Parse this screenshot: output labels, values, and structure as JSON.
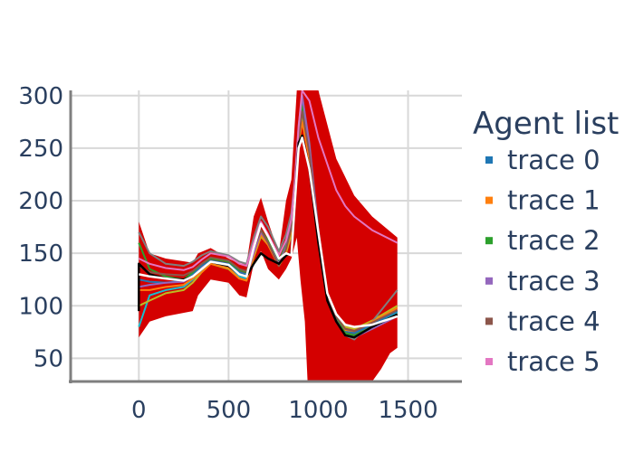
{
  "chart_data": {
    "type": "line",
    "title": "",
    "xlabel": "",
    "ylabel": "",
    "xlim": [
      -380,
      1800
    ],
    "ylim": [
      28,
      305
    ],
    "x_ticks": [
      0,
      500,
      1000,
      1500
    ],
    "x_tick_labels": [
      "0",
      "500",
      "1000",
      "1500"
    ],
    "y_ticks": [
      50,
      100,
      150,
      200,
      250,
      300
    ],
    "y_tick_labels": [
      "50",
      "100",
      "150",
      "200",
      "250",
      "300"
    ],
    "grid": true,
    "legend": {
      "title": "Agent list",
      "placement": "right"
    },
    "band": {
      "color": "#d40000",
      "upper": [
        [
          0,
          180
        ],
        [
          60,
          150
        ],
        [
          150,
          145
        ],
        [
          300,
          141
        ],
        [
          330,
          150
        ],
        [
          400,
          155
        ],
        [
          500,
          145
        ],
        [
          560,
          140
        ],
        [
          600,
          140
        ],
        [
          640,
          185
        ],
        [
          680,
          203
        ],
        [
          720,
          180
        ],
        [
          780,
          150
        ],
        [
          820,
          200
        ],
        [
          850,
          220
        ],
        [
          880,
          305
        ],
        [
          1000,
          305
        ],
        [
          1100,
          240
        ],
        [
          1200,
          205
        ],
        [
          1300,
          185
        ],
        [
          1440,
          165
        ]
      ],
      "lower": [
        [
          0,
          70
        ],
        [
          60,
          85
        ],
        [
          150,
          90
        ],
        [
          300,
          95
        ],
        [
          330,
          110
        ],
        [
          400,
          125
        ],
        [
          500,
          122
        ],
        [
          560,
          110
        ],
        [
          600,
          108
        ],
        [
          640,
          140
        ],
        [
          680,
          152
        ],
        [
          720,
          135
        ],
        [
          780,
          125
        ],
        [
          820,
          135
        ],
        [
          850,
          145
        ],
        [
          880,
          165
        ],
        [
          900,
          125
        ],
        [
          925,
          85
        ],
        [
          940,
          28
        ],
        [
          1300,
          28
        ],
        [
          1350,
          40
        ],
        [
          1400,
          55
        ],
        [
          1440,
          60
        ]
      ]
    },
    "series": [
      {
        "name": "trace 0",
        "color": "#1f77b4",
        "x": [
          0,
          60,
          150,
          250,
          300,
          350,
          400,
          500,
          560,
          600,
          640,
          680,
          720,
          780,
          820,
          850,
          870,
          890,
          910,
          950,
          1000,
          1050,
          1100,
          1150,
          1200,
          1300,
          1440
        ],
        "y": [
          125,
          123,
          122,
          124,
          130,
          138,
          143,
          140,
          132,
          130,
          152,
          170,
          160,
          140,
          155,
          175,
          210,
          260,
          292,
          250,
          170,
          110,
          90,
          76,
          74,
          82,
          95
        ]
      },
      {
        "name": "trace 1",
        "color": "#ff7f0e",
        "x": [
          0,
          60,
          150,
          250,
          300,
          350,
          400,
          500,
          560,
          600,
          640,
          680,
          720,
          780,
          820,
          850,
          870,
          890,
          910,
          950,
          1000,
          1050,
          1100,
          1150,
          1200,
          1300,
          1440
        ],
        "y": [
          115,
          115,
          118,
          120,
          126,
          132,
          140,
          136,
          126,
          124,
          148,
          168,
          158,
          138,
          152,
          172,
          205,
          255,
          275,
          240,
          165,
          108,
          88,
          77,
          76,
          85,
          98
        ]
      },
      {
        "name": "trace 2",
        "color": "#2ca02c",
        "x": [
          0,
          60,
          150,
          250,
          300,
          350,
          400,
          500,
          560,
          600,
          640,
          680,
          720,
          780,
          820,
          850,
          870,
          890,
          910,
          950,
          1000,
          1050,
          1100,
          1150,
          1200,
          1300,
          1440
        ],
        "y": [
          160,
          135,
          128,
          125,
          132,
          140,
          145,
          142,
          134,
          132,
          155,
          172,
          162,
          142,
          158,
          178,
          212,
          262,
          290,
          248,
          168,
          110,
          88,
          74,
          72,
          80,
          92
        ]
      },
      {
        "name": "trace 3",
        "color": "#9467bd",
        "x": [
          0,
          60,
          150,
          250,
          300,
          350,
          400,
          500,
          560,
          600,
          640,
          680,
          720,
          780,
          820,
          850,
          870,
          890,
          910,
          950,
          1000,
          1050,
          1100,
          1150,
          1200,
          1300,
          1440
        ],
        "y": [
          118,
          120,
          122,
          123,
          128,
          136,
          142,
          139,
          130,
          128,
          150,
          170,
          160,
          140,
          156,
          176,
          215,
          268,
          300,
          252,
          170,
          108,
          86,
          72,
          70,
          78,
          90
        ]
      },
      {
        "name": "trace 4",
        "color": "#8c564b",
        "x": [
          0,
          60,
          150,
          250,
          300,
          350,
          400,
          500,
          560,
          600,
          640,
          680,
          720,
          780,
          820,
          850,
          870,
          890,
          910,
          950,
          1000,
          1050,
          1100,
          1150,
          1200,
          1300,
          1440
        ],
        "y": [
          138,
          132,
          130,
          129,
          133,
          140,
          146,
          143,
          135,
          133,
          154,
          172,
          160,
          138,
          154,
          174,
          208,
          258,
          285,
          245,
          168,
          110,
          90,
          78,
          76,
          84,
          96
        ]
      },
      {
        "name": "trace 5",
        "color": "#e377c2",
        "x": [
          0,
          60,
          150,
          250,
          300,
          350,
          400,
          500,
          560,
          600,
          640,
          680,
          720,
          780,
          820,
          850,
          870,
          890,
          910,
          950,
          1000,
          1050,
          1100,
          1150,
          1200,
          1300,
          1440
        ],
        "y": [
          145,
          140,
          136,
          134,
          137,
          144,
          150,
          147,
          140,
          138,
          160,
          180,
          168,
          148,
          162,
          182,
          220,
          270,
          305,
          295,
          260,
          235,
          210,
          195,
          185,
          172,
          160
        ]
      }
    ],
    "extra_lines": [
      {
        "color": "#17becf",
        "x": [
          0,
          60,
          150,
          250,
          300,
          350,
          400,
          500,
          560,
          600,
          640,
          680,
          720,
          780,
          820,
          850,
          870,
          890,
          910,
          950,
          1000,
          1050,
          1100,
          1150,
          1200,
          1300,
          1440
        ],
        "y": [
          80,
          110,
          115,
          118,
          125,
          134,
          142,
          137,
          128,
          126,
          150,
          170,
          162,
          142,
          158,
          178,
          212,
          265,
          298,
          250,
          170,
          108,
          86,
          74,
          72,
          80,
          94
        ]
      },
      {
        "color": "#bcbd22",
        "x": [
          0,
          60,
          150,
          250,
          300,
          350,
          400,
          500,
          560,
          600,
          640,
          680,
          720,
          780,
          820,
          850,
          870,
          890,
          910,
          950,
          1000,
          1050,
          1100,
          1150,
          1200,
          1300,
          1440
        ],
        "y": [
          100,
          105,
          112,
          115,
          122,
          132,
          140,
          135,
          126,
          124,
          146,
          166,
          158,
          138,
          150,
          168,
          200,
          250,
          280,
          240,
          165,
          112,
          92,
          80,
          78,
          86,
          100
        ]
      },
      {
        "color": "#7f7f7f",
        "x": [
          0,
          60,
          150,
          250,
          300,
          350,
          400,
          500,
          560,
          600,
          640,
          680,
          720,
          780,
          820,
          850,
          870,
          890,
          910,
          950,
          1000,
          1050,
          1100,
          1150,
          1200,
          1300,
          1440
        ],
        "y": [
          170,
          150,
          140,
          138,
          142,
          148,
          152,
          148,
          142,
          140,
          165,
          185,
          175,
          152,
          168,
          188,
          222,
          272,
          300,
          255,
          172,
          112,
          90,
          72,
          68,
          85,
          115
        ]
      },
      {
        "color": "#000000",
        "x": [
          0,
          0,
          60,
          150,
          250,
          300,
          350,
          400,
          500,
          560,
          600,
          640,
          680,
          720,
          780,
          820,
          850,
          870,
          890,
          910,
          950,
          1000,
          1050,
          1100,
          1150,
          1200,
          1300,
          1440
        ],
        "y": [
          95,
          140,
          130,
          126,
          125,
          128,
          135,
          142,
          138,
          130,
          128,
          140,
          150,
          145,
          140,
          148,
          150,
          200,
          255,
          262,
          230,
          160,
          105,
          85,
          72,
          70,
          80,
          92
        ]
      },
      {
        "color": "#ffffff",
        "x": [
          0,
          60,
          150,
          250,
          300,
          350,
          400,
          500,
          560,
          600,
          640,
          680,
          720,
          780,
          820,
          850,
          870,
          890,
          910,
          950,
          1000,
          1050,
          1100,
          1150,
          1200,
          1300,
          1440
        ],
        "y": [
          130,
          128,
          126,
          124,
          128,
          135,
          142,
          139,
          130,
          128,
          155,
          178,
          166,
          145,
          150,
          148,
          200,
          250,
          260,
          230,
          170,
          112,
          92,
          82,
          80,
          82,
          90
        ]
      }
    ]
  }
}
